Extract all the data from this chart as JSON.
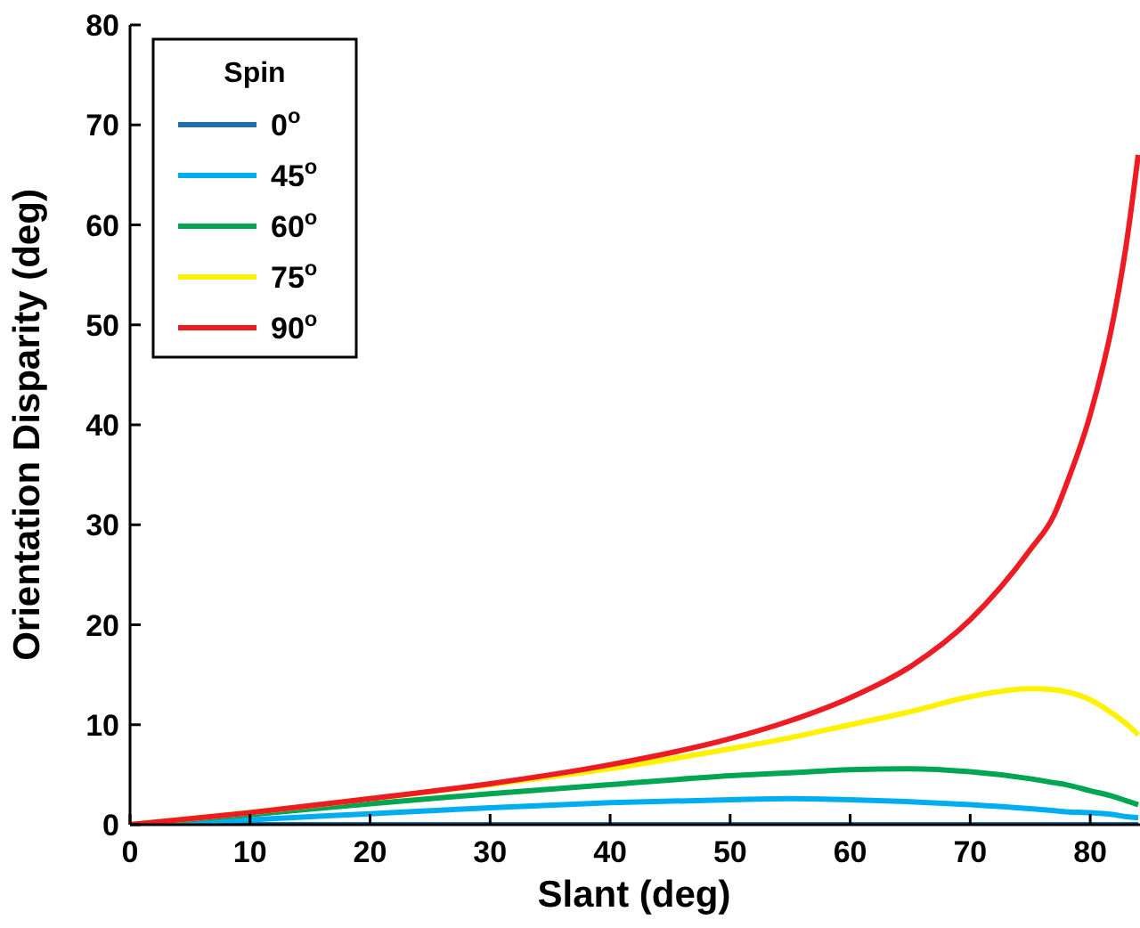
{
  "chart_data": {
    "type": "line",
    "xlabel": "Slant (deg)",
    "ylabel": "Orientation Disparity (deg)",
    "legend_title": "Spin",
    "legend": "top left",
    "grid": false,
    "line_style": "solid",
    "xlim": [
      0,
      84
    ],
    "ylim": [
      0,
      80
    ],
    "xticks": [
      0,
      10,
      20,
      30,
      40,
      50,
      60,
      70,
      80
    ],
    "yticks": [
      0,
      10,
      20,
      30,
      40,
      50,
      60,
      70,
      80
    ],
    "x": [
      0,
      10,
      20,
      30,
      40,
      50,
      55,
      60,
      65,
      70,
      75,
      77,
      78,
      80,
      82,
      83,
      84
    ],
    "series": [
      {
        "name": "0$^{o}$",
        "color": "#1f6eb0",
        "values": [
          0,
          0,
          0,
          0,
          0,
          0,
          0,
          0,
          0,
          0,
          0,
          0,
          0,
          0,
          0,
          0,
          0
        ]
      },
      {
        "name": "45$^{o}$",
        "color": "#00aeef",
        "values": [
          0,
          0.5,
          1.1,
          1.7,
          2.2,
          2.5,
          2.6,
          2.5,
          2.3,
          2.0,
          1.6,
          1.4,
          1.3,
          1.2,
          1.0,
          0.8,
          0.7
        ]
      },
      {
        "name": "60$^{o}$",
        "color": "#00a651",
        "values": [
          0,
          1.0,
          2.1,
          3.1,
          4.0,
          4.9,
          5.2,
          5.5,
          5.6,
          5.3,
          4.6,
          4.2,
          4.0,
          3.4,
          2.8,
          2.4,
          2.0
        ]
      },
      {
        "name": "75$^{o}$",
        "color": "#fff200",
        "values": [
          0,
          1.2,
          2.6,
          4.0,
          5.6,
          7.6,
          8.7,
          10.0,
          11.3,
          12.8,
          13.6,
          13.5,
          13.3,
          12.5,
          11.0,
          10.1,
          9.0
        ]
      },
      {
        "name": "90$^{o}$",
        "color": "#ed1c24",
        "values": [
          0,
          1.2,
          2.6,
          4.1,
          6.0,
          8.6,
          10.4,
          12.7,
          15.8,
          20.5,
          27.5,
          31,
          34,
          41,
          51,
          58,
          67
        ]
      }
    ]
  }
}
